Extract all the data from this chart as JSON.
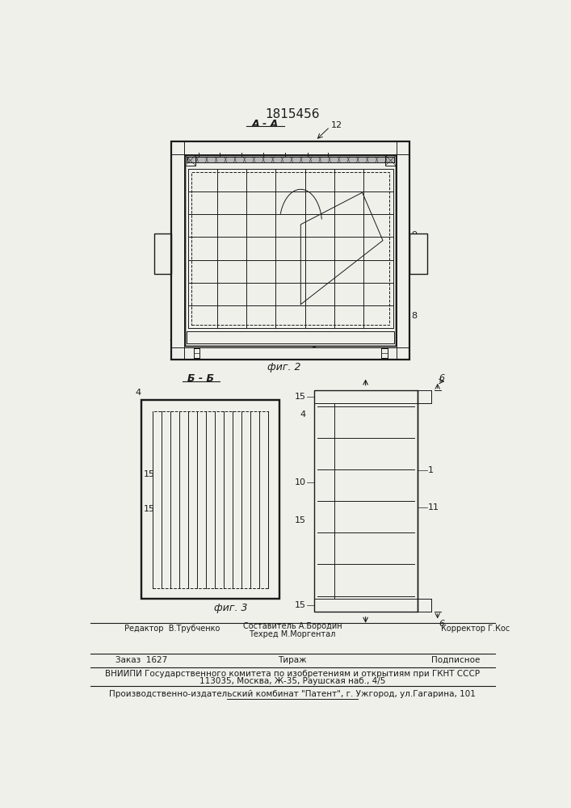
{
  "title": "1815456",
  "bg_color": "#f0f0eb",
  "line_color": "#1a1a1a",
  "fig2_label": "фиг. 2",
  "fig3_label": "фиг. 3",
  "section_aa": "A - A",
  "section_bb": "Б - Б"
}
